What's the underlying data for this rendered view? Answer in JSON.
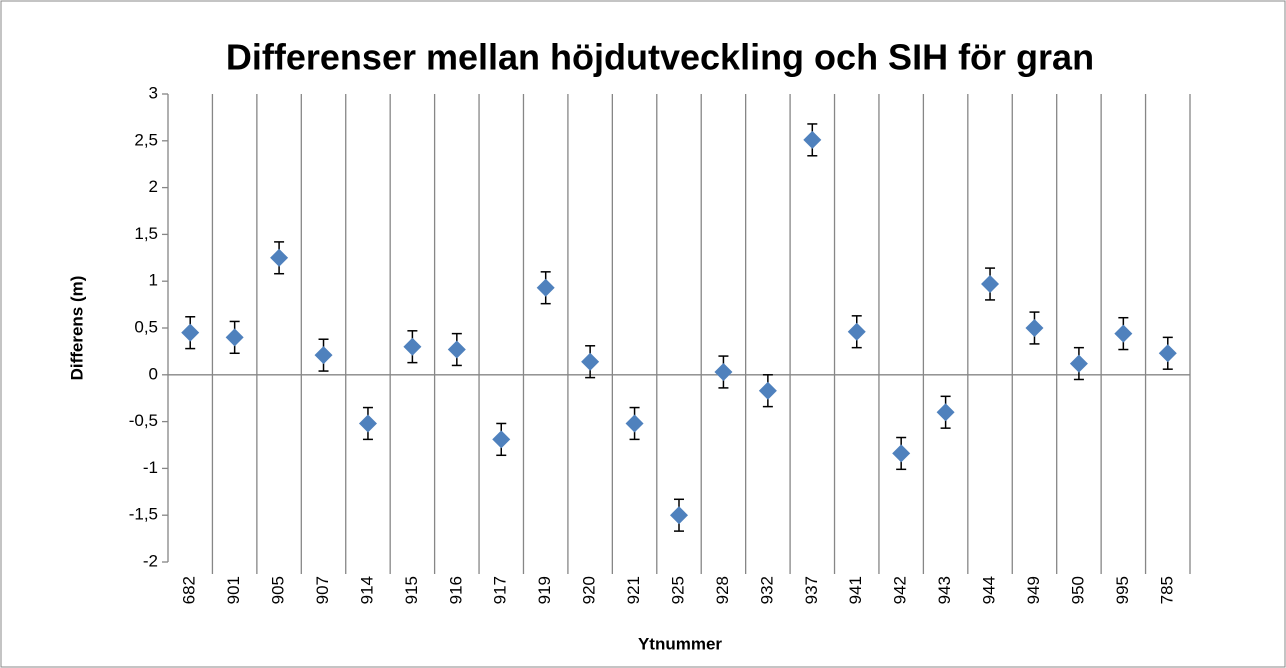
{
  "chart_data": {
    "type": "scatter",
    "title": "Differenser mellan höjdutveckling och SIH för gran",
    "x_label": "Ytnummer",
    "y_label": "Differens (m)",
    "categories": [
      "682",
      "901",
      "905",
      "907",
      "914",
      "915",
      "916",
      "917",
      "919",
      "920",
      "921",
      "925",
      "928",
      "932",
      "937",
      "941",
      "942",
      "943",
      "944",
      "949",
      "950",
      "995",
      "785"
    ],
    "series": [
      {
        "name": "Differens",
        "color": "#4f81bd",
        "values": [
          0.45,
          0.4,
          1.25,
          0.21,
          -0.52,
          0.3,
          0.27,
          -0.69,
          0.93,
          0.14,
          -0.52,
          -1.5,
          0.03,
          -0.17,
          2.51,
          0.46,
          -0.84,
          -0.4,
          0.97,
          0.5,
          0.12,
          0.44,
          0.23
        ],
        "errors": [
          0.17,
          0.17,
          0.17,
          0.17,
          0.17,
          0.17,
          0.17,
          0.17,
          0.17,
          0.17,
          0.17,
          0.17,
          0.17,
          0.17,
          0.17,
          0.17,
          0.17,
          0.17,
          0.17,
          0.17,
          0.17,
          0.17,
          0.17
        ]
      }
    ],
    "ylim": [
      -2,
      3
    ],
    "yticks": [
      -2,
      {
        "value": -1.5,
        "label": "-1,5"
      },
      -1,
      {
        "value": -0.5,
        "label": "-0,5"
      },
      0,
      {
        "value": 0.5,
        "label": "0,5"
      },
      1,
      {
        "value": 1.5,
        "label": "1,5"
      },
      2,
      {
        "value": 2.5,
        "label": "2,5"
      },
      3
    ],
    "grid": "x"
  }
}
